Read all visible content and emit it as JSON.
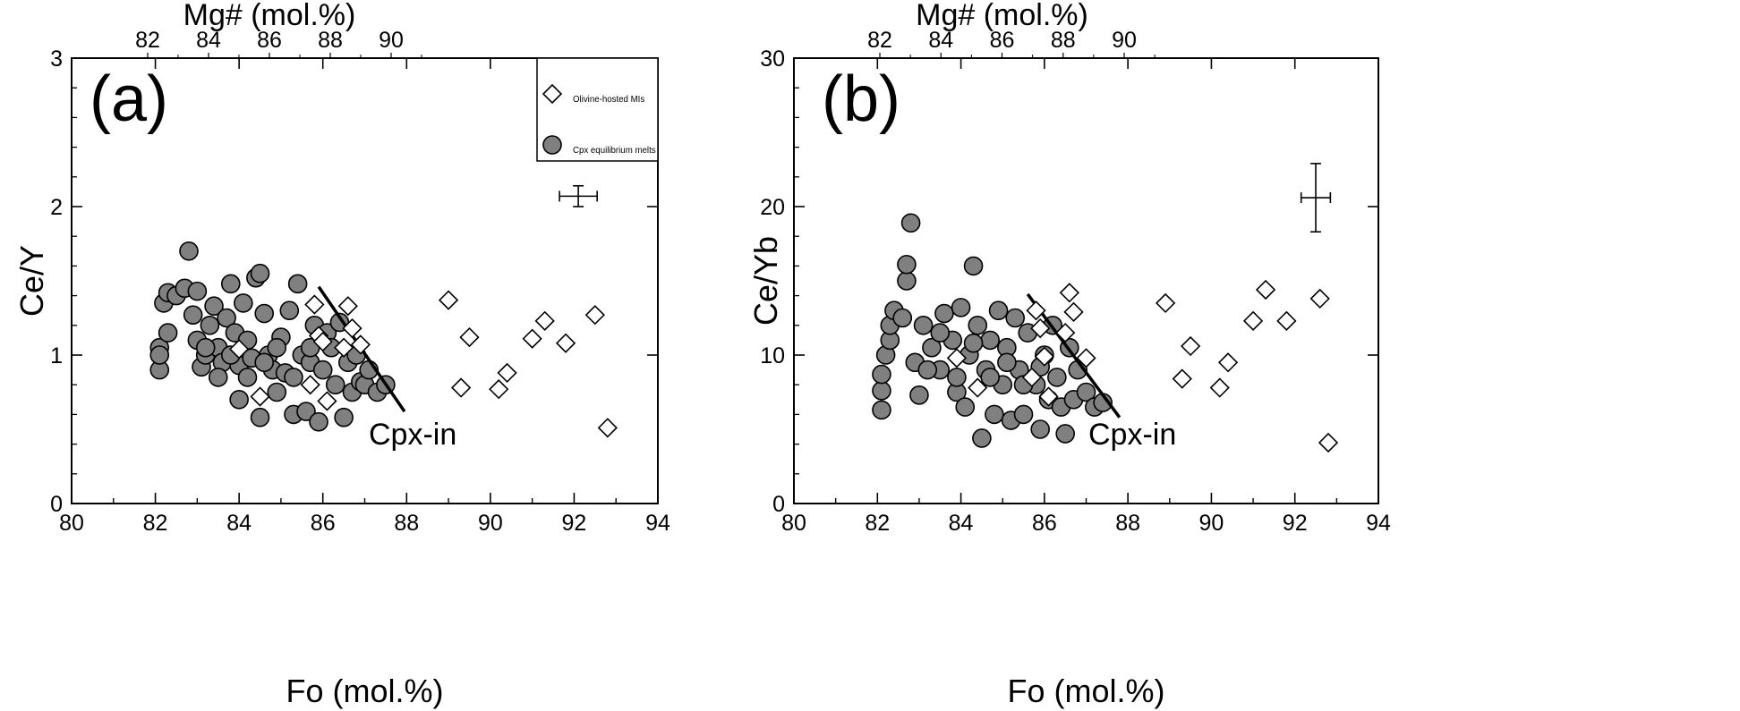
{
  "chart_data": [
    {
      "type": "scatter",
      "panel_label": "(a)",
      "xlabel": "Fo (mol.%)",
      "ylabel": "Ce/Y",
      "top_axis_label": "Mg# (mol.%)",
      "xlim": [
        80,
        94
      ],
      "ylim": [
        0,
        3
      ],
      "xticks": [
        "80",
        "82",
        "84",
        "86",
        "88",
        "90",
        "92",
        "94"
      ],
      "yticks": [
        "0",
        "1",
        "2",
        "3"
      ],
      "top_ticks": [
        "82",
        "84",
        "86",
        "88",
        "90"
      ],
      "legend": {
        "placement": "top-right",
        "entries": [
          {
            "label": "Olivine-hosted MIs",
            "marker": "diamond-open"
          },
          {
            "label": "Cpx equilibrium melts",
            "marker": "circle-gray"
          }
        ]
      },
      "annotation": {
        "text": "Cpx-in",
        "line": [
          [
            85.9,
            1.46
          ],
          [
            87.95,
            0.62
          ]
        ]
      },
      "error_bar": {
        "x": 92.1,
        "y": 2.07,
        "x_err": 0.45,
        "y_err": 0.07
      },
      "series": [
        {
          "name": "Olivine-hosted MIs",
          "marker": "diamond-open",
          "points": [
            [
              84.0,
              1.04
            ],
            [
              84.5,
              0.72
            ],
            [
              85.7,
              0.8
            ],
            [
              85.8,
              1.34
            ],
            [
              85.9,
              1.13
            ],
            [
              86.0,
              1.09
            ],
            [
              86.1,
              0.69
            ],
            [
              86.5,
              1.05
            ],
            [
              86.6,
              1.33
            ],
            [
              86.7,
              1.18
            ],
            [
              86.9,
              1.07
            ],
            [
              89.0,
              1.37
            ],
            [
              89.3,
              0.78
            ],
            [
              89.5,
              1.12
            ],
            [
              90.2,
              0.77
            ],
            [
              90.4,
              0.88
            ],
            [
              91.0,
              1.11
            ],
            [
              91.3,
              1.23
            ],
            [
              91.8,
              1.08
            ],
            [
              92.5,
              1.27
            ],
            [
              92.8,
              0.51
            ]
          ]
        },
        {
          "name": "Cpx equilibrium melts",
          "marker": "circle-gray",
          "points": [
            [
              82.1,
              1.05
            ],
            [
              82.1,
              0.9
            ],
            [
              82.1,
              1.0
            ],
            [
              82.2,
              1.35
            ],
            [
              82.3,
              1.15
            ],
            [
              82.3,
              1.42
            ],
            [
              82.5,
              1.4
            ],
            [
              82.7,
              1.45
            ],
            [
              82.8,
              1.7
            ],
            [
              82.9,
              1.27
            ],
            [
              83.0,
              1.43
            ],
            [
              83.0,
              1.1
            ],
            [
              83.1,
              0.92
            ],
            [
              83.2,
              1.0
            ],
            [
              83.3,
              1.2
            ],
            [
              83.4,
              1.33
            ],
            [
              83.5,
              1.05
            ],
            [
              83.6,
              0.95
            ],
            [
              83.7,
              1.25
            ],
            [
              83.8,
              1.48
            ],
            [
              83.9,
              1.15
            ],
            [
              84.0,
              0.7
            ],
            [
              84.0,
              0.93
            ],
            [
              84.1,
              1.35
            ],
            [
              84.2,
              1.1
            ],
            [
              84.3,
              0.98
            ],
            [
              84.4,
              1.52
            ],
            [
              84.5,
              1.55
            ],
            [
              84.5,
              0.58
            ],
            [
              84.6,
              1.28
            ],
            [
              84.7,
              1.0
            ],
            [
              84.8,
              0.9
            ],
            [
              84.9,
              0.75
            ],
            [
              85.0,
              1.12
            ],
            [
              85.1,
              0.88
            ],
            [
              85.2,
              1.3
            ],
            [
              85.3,
              0.6
            ],
            [
              85.4,
              1.48
            ],
            [
              85.5,
              1.0
            ],
            [
              85.6,
              0.62
            ],
            [
              85.7,
              0.95
            ],
            [
              85.8,
              1.2
            ],
            [
              85.9,
              0.55
            ],
            [
              86.0,
              0.9
            ],
            [
              86.1,
              1.15
            ],
            [
              86.2,
              1.05
            ],
            [
              86.3,
              0.8
            ],
            [
              86.4,
              1.22
            ],
            [
              86.5,
              0.58
            ],
            [
              86.6,
              0.95
            ],
            [
              86.7,
              0.75
            ],
            [
              86.8,
              1.0
            ],
            [
              86.9,
              0.82
            ],
            [
              87.0,
              0.8
            ],
            [
              87.1,
              0.9
            ],
            [
              87.3,
              0.75
            ],
            [
              87.5,
              0.8
            ],
            [
              83.2,
              1.05
            ],
            [
              83.5,
              0.85
            ],
            [
              83.8,
              1.0
            ],
            [
              84.2,
              0.85
            ],
            [
              84.6,
              0.95
            ],
            [
              84.9,
              1.05
            ],
            [
              85.3,
              0.85
            ],
            [
              85.7,
              1.05
            ]
          ]
        }
      ]
    },
    {
      "type": "scatter",
      "panel_label": "(b)",
      "xlabel": "Fo (mol.%)",
      "ylabel": "Ce/Yb",
      "top_axis_label": "Mg# (mol.%)",
      "xlim": [
        80,
        94
      ],
      "ylim": [
        0,
        30
      ],
      "xticks": [
        "80",
        "82",
        "84",
        "86",
        "88",
        "90",
        "92",
        "94"
      ],
      "yticks": [
        "0",
        "10",
        "20",
        "30"
      ],
      "top_ticks": [
        "82",
        "84",
        "86",
        "88",
        "90"
      ],
      "annotation": {
        "text": "Cpx-in",
        "line": [
          [
            85.6,
            14.1
          ],
          [
            87.8,
            5.8
          ]
        ]
      },
      "error_bar": {
        "x": 92.5,
        "y": 20.6,
        "x_err": 0.35,
        "y_err": 2.3
      },
      "series": [
        {
          "name": "Olivine-hosted MIs",
          "marker": "diamond-open",
          "points": [
            [
              83.9,
              9.8
            ],
            [
              84.4,
              7.8
            ],
            [
              85.7,
              8.5
            ],
            [
              85.8,
              13.0
            ],
            [
              85.9,
              11.8
            ],
            [
              86.0,
              9.9
            ],
            [
              86.1,
              7.2
            ],
            [
              86.5,
              11.5
            ],
            [
              86.6,
              14.2
            ],
            [
              86.7,
              12.9
            ],
            [
              87.0,
              9.8
            ],
            [
              88.9,
              13.5
            ],
            [
              89.3,
              8.4
            ],
            [
              89.5,
              10.6
            ],
            [
              90.2,
              7.8
            ],
            [
              90.4,
              9.5
            ],
            [
              91.0,
              12.3
            ],
            [
              91.3,
              14.4
            ],
            [
              91.8,
              12.3
            ],
            [
              92.6,
              13.8
            ],
            [
              92.8,
              4.1
            ]
          ]
        },
        {
          "name": "Cpx equilibrium melts",
          "marker": "circle-gray",
          "points": [
            [
              82.1,
              6.3
            ],
            [
              82.1,
              7.6
            ],
            [
              82.1,
              8.7
            ],
            [
              82.2,
              10.0
            ],
            [
              82.3,
              11.0
            ],
            [
              82.3,
              12.0
            ],
            [
              82.4,
              13.0
            ],
            [
              82.6,
              12.5
            ],
            [
              82.7,
              15.0
            ],
            [
              82.7,
              16.1
            ],
            [
              82.8,
              18.9
            ],
            [
              82.9,
              9.5
            ],
            [
              83.0,
              7.3
            ],
            [
              83.1,
              12.0
            ],
            [
              83.3,
              10.5
            ],
            [
              83.5,
              9.0
            ],
            [
              83.6,
              12.8
            ],
            [
              83.8,
              11.0
            ],
            [
              83.9,
              7.5
            ],
            [
              84.0,
              13.2
            ],
            [
              84.1,
              6.5
            ],
            [
              84.2,
              10.0
            ],
            [
              84.3,
              16.0
            ],
            [
              84.4,
              12.0
            ],
            [
              84.5,
              4.4
            ],
            [
              84.6,
              9.0
            ],
            [
              84.7,
              11.0
            ],
            [
              84.8,
              6.0
            ],
            [
              84.9,
              13.0
            ],
            [
              85.0,
              8.0
            ],
            [
              85.1,
              10.5
            ],
            [
              85.2,
              5.6
            ],
            [
              85.3,
              12.5
            ],
            [
              85.4,
              9.0
            ],
            [
              85.5,
              6.0
            ],
            [
              85.6,
              11.5
            ],
            [
              85.8,
              8.0
            ],
            [
              85.9,
              5.0
            ],
            [
              86.0,
              10.0
            ],
            [
              86.1,
              7.0
            ],
            [
              86.2,
              12.0
            ],
            [
              86.3,
              8.5
            ],
            [
              86.4,
              6.5
            ],
            [
              86.5,
              4.7
            ],
            [
              86.6,
              10.5
            ],
            [
              86.7,
              7.0
            ],
            [
              86.8,
              9.0
            ],
            [
              87.0,
              7.5
            ],
            [
              87.2,
              6.5
            ],
            [
              87.4,
              6.8
            ],
            [
              83.2,
              9.0
            ],
            [
              83.5,
              11.5
            ],
            [
              83.9,
              8.5
            ],
            [
              84.3,
              10.8
            ],
            [
              84.7,
              8.5
            ],
            [
              85.1,
              9.5
            ],
            [
              85.5,
              8.0
            ],
            [
              85.9,
              9.2
            ]
          ]
        }
      ]
    }
  ]
}
